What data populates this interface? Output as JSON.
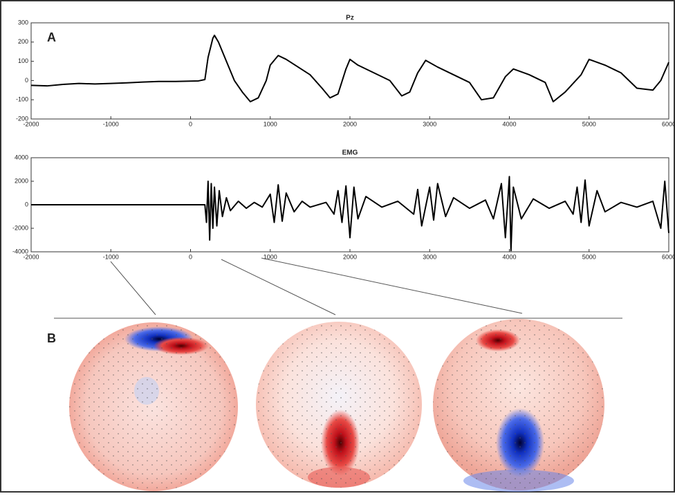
{
  "panel_labels": [
    "A",
    "B"
  ],
  "chart_data": [
    {
      "type": "line",
      "title": "Pz",
      "x": [
        -2000,
        -1800,
        -1600,
        -1400,
        -1200,
        -1000,
        -800,
        -600,
        -400,
        -200,
        0,
        100,
        180,
        220,
        280,
        300,
        350,
        450,
        550,
        650,
        750,
        850,
        950,
        1000,
        1100,
        1200,
        1350,
        1500,
        1650,
        1750,
        1850,
        1950,
        2000,
        2100,
        2300,
        2500,
        2650,
        2750,
        2850,
        2950,
        3100,
        3300,
        3500,
        3650,
        3800,
        3950,
        4050,
        4250,
        4450,
        4550,
        4700,
        4900,
        5000,
        5200,
        5400,
        5600,
        5800,
        5900,
        6000
      ],
      "series": [
        {
          "name": "Pz",
          "color": "#000000",
          "values": [
            -25,
            -28,
            -20,
            -15,
            -18,
            -15,
            -12,
            -8,
            -5,
            -5,
            -3,
            -2,
            5,
            120,
            220,
            235,
            200,
            100,
            0,
            -60,
            -110,
            -90,
            0,
            80,
            130,
            110,
            70,
            30,
            -40,
            -90,
            -70,
            60,
            110,
            80,
            40,
            0,
            -80,
            -60,
            40,
            105,
            70,
            30,
            -10,
            -100,
            -90,
            20,
            60,
            30,
            -10,
            -110,
            -60,
            30,
            110,
            80,
            40,
            -40,
            -50,
            0,
            95
          ]
        }
      ],
      "xlim": [
        -2000,
        6000
      ],
      "xticks": [
        -2000,
        -1000,
        0,
        1000,
        2000,
        3000,
        4000,
        5000,
        6000
      ],
      "ylim": [
        -200,
        300
      ],
      "yticks": [
        -200,
        -100,
        0,
        100,
        200,
        300
      ]
    },
    {
      "type": "line",
      "title": "EMG",
      "x": [
        -2000,
        -1000,
        0,
        180,
        200,
        220,
        240,
        260,
        280,
        300,
        330,
        360,
        400,
        450,
        500,
        600,
        700,
        800,
        900,
        1000,
        1050,
        1100,
        1150,
        1200,
        1300,
        1400,
        1500,
        1700,
        1800,
        1850,
        1900,
        1950,
        2000,
        2050,
        2100,
        2200,
        2400,
        2600,
        2800,
        2850,
        2900,
        3000,
        3050,
        3100,
        3200,
        3300,
        3500,
        3700,
        3800,
        3900,
        3950,
        4000,
        4020,
        4050,
        4150,
        4300,
        4500,
        4700,
        4800,
        4850,
        4900,
        4950,
        5000,
        5100,
        5200,
        5400,
        5600,
        5800,
        5900,
        5950,
        6000
      ],
      "series": [
        {
          "name": "EMG",
          "color": "#000000",
          "values": [
            0,
            0,
            0,
            0,
            -1500,
            2000,
            -3000,
            1800,
            -2000,
            1500,
            -1800,
            1200,
            -1000,
            600,
            -500,
            300,
            -300,
            200,
            -200,
            900,
            -1500,
            1700,
            -1400,
            1000,
            -600,
            300,
            -200,
            200,
            -800,
            1200,
            -1500,
            1600,
            -2800,
            1500,
            -1200,
            700,
            -200,
            300,
            -800,
            1300,
            -1800,
            1500,
            -1300,
            1800,
            -1000,
            600,
            -300,
            400,
            -1200,
            1800,
            -2800,
            2400,
            -3900,
            1500,
            -1200,
            500,
            -300,
            300,
            -800,
            1500,
            -1500,
            2100,
            -1800,
            1200,
            -600,
            200,
            -200,
            300,
            -2000,
            2000,
            -2400
          ]
        }
      ],
      "xlim": [
        -2000,
        6000
      ],
      "xticks": [
        -2000,
        -1000,
        0,
        1000,
        2000,
        3000,
        4000,
        5000,
        6000
      ],
      "ylim": [
        -4000,
        4000
      ],
      "yticks": [
        -4000,
        -2000,
        0,
        2000,
        4000
      ]
    }
  ]
}
